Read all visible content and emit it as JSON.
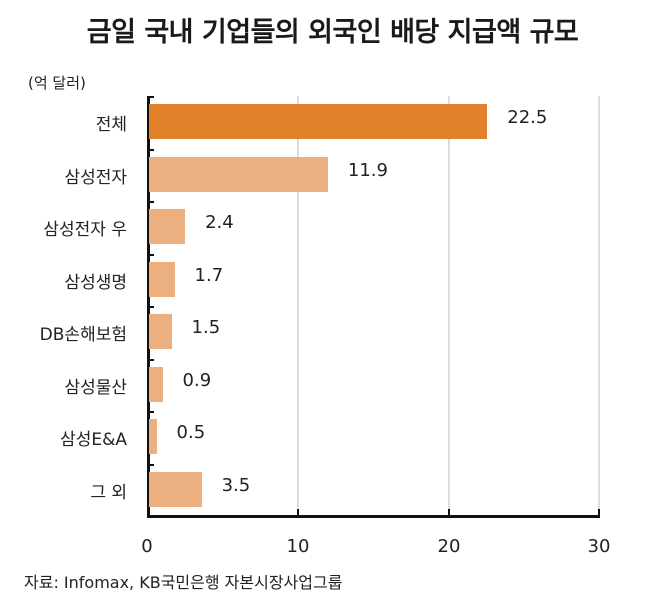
{
  "title": "금일 국내 기업들의 외국인 배당 지급액 규모",
  "unit": "(억 달러)",
  "source": "자료: Infomax, KB국민은행 자본시장사업그룹",
  "colors": {
    "highlight": "#e2812b",
    "normal": "#ecb080"
  },
  "chart_data": {
    "type": "bar",
    "orientation": "horizontal",
    "title": "금일 국내 기업들의 외국인 배당 지급액 규모",
    "ylabel": "(억 달러)",
    "xlabel": "",
    "categories": [
      "전체",
      "삼성전자",
      "삼성전자 우",
      "삼성생명",
      "DB손해보험",
      "삼성물산",
      "삼성E&A",
      "그 외"
    ],
    "values": [
      22.5,
      11.9,
      2.4,
      1.7,
      1.5,
      0.9,
      0.5,
      3.5
    ],
    "value_labels": [
      "22.5",
      "11.9",
      "2.4",
      "1.7",
      "1.5",
      "0.9",
      "0.5",
      "3.5"
    ],
    "xlim": [
      0,
      30
    ],
    "xticks": [
      "0",
      "10",
      "20",
      "30"
    ],
    "grid": "vertical",
    "highlight_index": 0,
    "source": "자료: Infomax, KB국민은행 자본시장사업그룹"
  }
}
